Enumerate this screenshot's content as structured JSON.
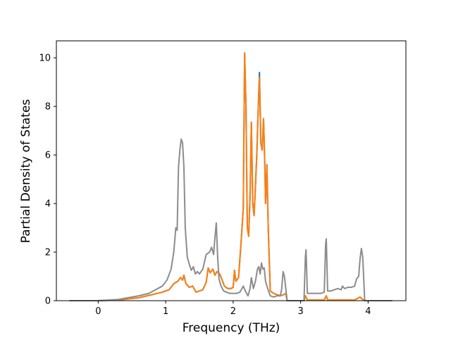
{
  "chart_data": {
    "type": "line",
    "title": "",
    "xlabel": "Frequency (THz)",
    "ylabel": "Partial Density of States",
    "xlim": [
      -0.62,
      4.56
    ],
    "ylim": [
      0,
      10.7
    ],
    "xticks": [
      0,
      1,
      2,
      3,
      4
    ],
    "yticks": [
      0,
      2,
      4,
      6,
      8,
      10
    ],
    "grid": false,
    "legend": "none",
    "series": [
      {
        "color": "#1f77b4",
        "points": [
          [
            -0.42,
            0
          ],
          [
            0,
            0
          ],
          [
            0.3,
            0.03
          ],
          [
            0.6,
            0.12
          ],
          [
            0.8,
            0.25
          ],
          [
            0.95,
            0.35
          ],
          [
            1.05,
            0.45
          ],
          [
            1.12,
            0.7
          ],
          [
            1.18,
            0.8
          ],
          [
            1.22,
            0.95
          ],
          [
            1.25,
            0.85
          ],
          [
            1.27,
            1.05
          ],
          [
            1.3,
            0.7
          ],
          [
            1.35,
            0.55
          ],
          [
            1.4,
            0.6
          ],
          [
            1.45,
            0.35
          ],
          [
            1.5,
            0.4
          ],
          [
            1.55,
            0.45
          ],
          [
            1.6,
            0.75
          ],
          [
            1.63,
            1.35
          ],
          [
            1.66,
            1.15
          ],
          [
            1.7,
            1.3
          ],
          [
            1.73,
            1.05
          ],
          [
            1.76,
            1.2
          ],
          [
            1.8,
            1.1
          ],
          [
            1.83,
            0.9
          ],
          [
            1.87,
            0.6
          ],
          [
            1.92,
            0.5
          ],
          [
            1.97,
            0.5
          ],
          [
            2.0,
            0.55
          ],
          [
            2.02,
            1.25
          ],
          [
            2.04,
            0.8
          ],
          [
            2.08,
            0.95
          ],
          [
            2.12,
            2.5
          ],
          [
            2.15,
            3.8
          ],
          [
            2.17,
            10.2
          ],
          [
            2.19,
            8.0
          ],
          [
            2.21,
            3.0
          ],
          [
            2.23,
            2.65
          ],
          [
            2.25,
            4.3
          ],
          [
            2.27,
            7.35
          ],
          [
            2.29,
            4.0
          ],
          [
            2.31,
            3.5
          ],
          [
            2.33,
            4.7
          ],
          [
            2.35,
            6.0
          ],
          [
            2.37,
            7.8
          ],
          [
            2.39,
            9.4
          ],
          [
            2.41,
            6.5
          ],
          [
            2.43,
            6.2
          ],
          [
            2.45,
            7.5
          ],
          [
            2.47,
            5.5
          ],
          [
            2.48,
            4.0
          ],
          [
            2.5,
            5.6
          ],
          [
            2.52,
            3.0
          ],
          [
            2.55,
            0.4
          ],
          [
            2.6,
            0.3
          ],
          [
            2.65,
            0.25
          ],
          [
            2.7,
            0.2
          ],
          [
            2.75,
            0.25
          ],
          [
            2.78,
            0.3
          ],
          [
            2.8,
            0
          ],
          [
            3.05,
            0
          ],
          [
            3.07,
            0.2
          ],
          [
            3.1,
            0.03
          ],
          [
            3.35,
            0.03
          ],
          [
            3.38,
            0.2
          ],
          [
            3.4,
            0.03
          ],
          [
            3.8,
            0.03
          ],
          [
            3.88,
            0.15
          ],
          [
            3.92,
            0.05
          ],
          [
            3.95,
            0
          ],
          [
            4.35,
            0
          ]
        ]
      },
      {
        "color": "#ff7f0e",
        "points": [
          [
            -0.42,
            0
          ],
          [
            0,
            0
          ],
          [
            0.3,
            0.03
          ],
          [
            0.6,
            0.12
          ],
          [
            0.8,
            0.25
          ],
          [
            0.95,
            0.35
          ],
          [
            1.05,
            0.45
          ],
          [
            1.12,
            0.7
          ],
          [
            1.18,
            0.8
          ],
          [
            1.22,
            0.95
          ],
          [
            1.25,
            0.85
          ],
          [
            1.27,
            1.05
          ],
          [
            1.3,
            0.7
          ],
          [
            1.35,
            0.55
          ],
          [
            1.4,
            0.6
          ],
          [
            1.45,
            0.35
          ],
          [
            1.5,
            0.4
          ],
          [
            1.55,
            0.45
          ],
          [
            1.6,
            0.75
          ],
          [
            1.63,
            1.35
          ],
          [
            1.66,
            1.15
          ],
          [
            1.7,
            1.3
          ],
          [
            1.73,
            1.05
          ],
          [
            1.76,
            1.2
          ],
          [
            1.8,
            1.1
          ],
          [
            1.83,
            0.9
          ],
          [
            1.87,
            0.6
          ],
          [
            1.92,
            0.5
          ],
          [
            1.97,
            0.5
          ],
          [
            2.0,
            0.55
          ],
          [
            2.02,
            1.25
          ],
          [
            2.04,
            0.8
          ],
          [
            2.08,
            0.95
          ],
          [
            2.12,
            2.5
          ],
          [
            2.15,
            3.8
          ],
          [
            2.17,
            10.2
          ],
          [
            2.19,
            8.0
          ],
          [
            2.21,
            3.0
          ],
          [
            2.23,
            2.65
          ],
          [
            2.25,
            4.3
          ],
          [
            2.27,
            7.35
          ],
          [
            2.29,
            4.0
          ],
          [
            2.31,
            3.5
          ],
          [
            2.33,
            4.7
          ],
          [
            2.35,
            6.0
          ],
          [
            2.37,
            7.8
          ],
          [
            2.39,
            9.2
          ],
          [
            2.41,
            6.5
          ],
          [
            2.43,
            6.2
          ],
          [
            2.45,
            7.5
          ],
          [
            2.47,
            5.5
          ],
          [
            2.48,
            4.0
          ],
          [
            2.5,
            5.6
          ],
          [
            2.52,
            3.0
          ],
          [
            2.55,
            0.4
          ],
          [
            2.6,
            0.3
          ],
          [
            2.65,
            0.25
          ],
          [
            2.7,
            0.2
          ],
          [
            2.75,
            0.25
          ],
          [
            2.78,
            0.3
          ],
          [
            2.8,
            0
          ],
          [
            3.05,
            0
          ],
          [
            3.07,
            0.2
          ],
          [
            3.1,
            0.03
          ],
          [
            3.35,
            0.03
          ],
          [
            3.38,
            0.2
          ],
          [
            3.4,
            0.03
          ],
          [
            3.8,
            0.03
          ],
          [
            3.88,
            0.15
          ],
          [
            3.92,
            0.05
          ],
          [
            3.95,
            0
          ],
          [
            4.35,
            0
          ]
        ]
      },
      {
        "color": "#8c8c8c",
        "points": [
          [
            -0.42,
            0
          ],
          [
            0,
            0
          ],
          [
            0.3,
            0.05
          ],
          [
            0.6,
            0.2
          ],
          [
            0.75,
            0.3
          ],
          [
            0.85,
            0.45
          ],
          [
            0.95,
            0.6
          ],
          [
            1.02,
            0.85
          ],
          [
            1.08,
            1.3
          ],
          [
            1.12,
            2.0
          ],
          [
            1.15,
            3.0
          ],
          [
            1.17,
            2.9
          ],
          [
            1.19,
            5.5
          ],
          [
            1.21,
            6.2
          ],
          [
            1.23,
            6.65
          ],
          [
            1.25,
            6.5
          ],
          [
            1.27,
            5.5
          ],
          [
            1.29,
            3.0
          ],
          [
            1.32,
            1.8
          ],
          [
            1.35,
            1.5
          ],
          [
            1.38,
            1.25
          ],
          [
            1.41,
            1.4
          ],
          [
            1.44,
            1.1
          ],
          [
            1.47,
            1.2
          ],
          [
            1.5,
            1.1
          ],
          [
            1.55,
            1.3
          ],
          [
            1.6,
            1.9
          ],
          [
            1.65,
            2.0
          ],
          [
            1.68,
            2.2
          ],
          [
            1.71,
            1.9
          ],
          [
            1.73,
            2.6
          ],
          [
            1.75,
            3.2
          ],
          [
            1.77,
            1.8
          ],
          [
            1.79,
            0.9
          ],
          [
            1.82,
            0.6
          ],
          [
            1.86,
            0.4
          ],
          [
            1.9,
            0.35
          ],
          [
            1.95,
            0.3
          ],
          [
            2.0,
            0.3
          ],
          [
            2.05,
            0.3
          ],
          [
            2.1,
            0.35
          ],
          [
            2.15,
            0.6
          ],
          [
            2.18,
            0.4
          ],
          [
            2.22,
            0.2
          ],
          [
            2.25,
            0.5
          ],
          [
            2.27,
            0.95
          ],
          [
            2.3,
            0.5
          ],
          [
            2.33,
            0.8
          ],
          [
            2.36,
            1.3
          ],
          [
            2.38,
            1.4
          ],
          [
            2.4,
            1.1
          ],
          [
            2.42,
            1.55
          ],
          [
            2.44,
            1.3
          ],
          [
            2.46,
            1.35
          ],
          [
            2.48,
            0.8
          ],
          [
            2.5,
            0.6
          ],
          [
            2.55,
            0.2
          ],
          [
            2.6,
            0.15
          ],
          [
            2.65,
            0.2
          ],
          [
            2.7,
            0.2
          ],
          [
            2.72,
            0.5
          ],
          [
            2.74,
            1.2
          ],
          [
            2.76,
            1.0
          ],
          [
            2.78,
            0.5
          ],
          [
            2.8,
            0
          ],
          [
            3.05,
            0
          ],
          [
            3.07,
            1.8
          ],
          [
            3.08,
            2.1
          ],
          [
            3.1,
            0.3
          ],
          [
            3.15,
            0.3
          ],
          [
            3.3,
            0.3
          ],
          [
            3.35,
            0.35
          ],
          [
            3.37,
            2.3
          ],
          [
            3.38,
            2.55
          ],
          [
            3.4,
            0.4
          ],
          [
            3.45,
            0.4
          ],
          [
            3.5,
            0.45
          ],
          [
            3.55,
            0.5
          ],
          [
            3.6,
            0.45
          ],
          [
            3.62,
            0.6
          ],
          [
            3.65,
            0.5
          ],
          [
            3.7,
            0.55
          ],
          [
            3.75,
            0.55
          ],
          [
            3.8,
            0.6
          ],
          [
            3.83,
            0.9
          ],
          [
            3.86,
            1.0
          ],
          [
            3.88,
            1.7
          ],
          [
            3.9,
            2.15
          ],
          [
            3.92,
            1.8
          ],
          [
            3.95,
            0
          ],
          [
            4.35,
            0
          ]
        ]
      }
    ]
  }
}
